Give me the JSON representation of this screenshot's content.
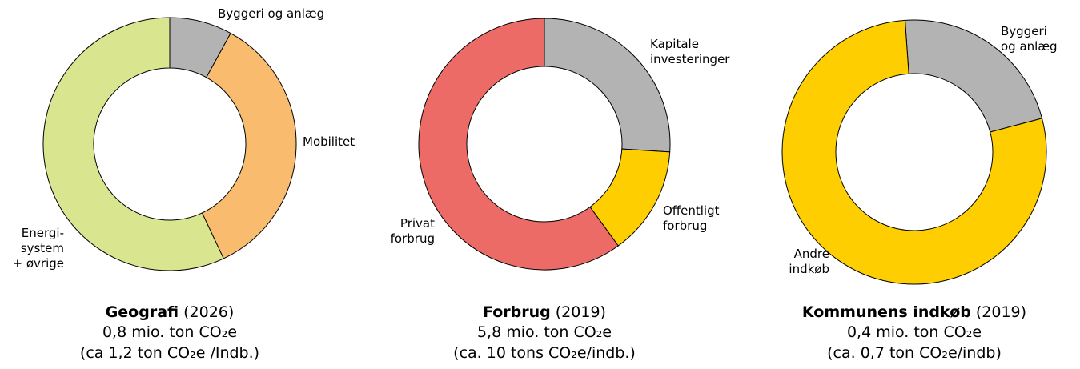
{
  "chart_data": [
    {
      "type": "pie",
      "title": "Geografi",
      "subtitle": "(2026)",
      "lines": [
        "0,8 mio. ton CO₂e",
        "(ca 1,2 ton CO₂e /Indb.)"
      ],
      "categories": [
        [
          "Byggeri og anlæg"
        ],
        [
          "Mobilitet"
        ],
        [
          "Energi-",
          "system",
          "+ øvrige"
        ]
      ],
      "values": [
        8,
        35,
        57
      ],
      "colors": [
        "#b3b3b3",
        "#f9bb6e",
        "#d9e68f"
      ]
    },
    {
      "type": "pie",
      "title": "Forbrug",
      "subtitle": "(2019)",
      "lines": [
        "5,8 mio. ton CO₂e",
        "(ca. 10 tons CO₂e/indb.)"
      ],
      "categories": [
        [
          "Kapitale",
          "investeringer"
        ],
        [
          "Offentligt",
          "forbrug"
        ],
        [
          "Privat",
          "forbrug"
        ]
      ],
      "values": [
        26,
        14,
        60
      ],
      "colors": [
        "#b3b3b3",
        "#ffce00",
        "#ec6b67"
      ]
    },
    {
      "type": "pie",
      "title": "Kommunens indkøb",
      "subtitle": "(2019)",
      "lines": [
        "0,4 mio. ton CO₂e",
        "(ca. 0,7 ton CO₂e/indb)"
      ],
      "categories": [
        [
          "Byggeri",
          "og anlæg"
        ],
        [
          "Andre",
          "indkøb"
        ]
      ],
      "values": [
        22,
        78
      ],
      "colors": [
        "#b3b3b3",
        "#ffce00"
      ]
    }
  ]
}
